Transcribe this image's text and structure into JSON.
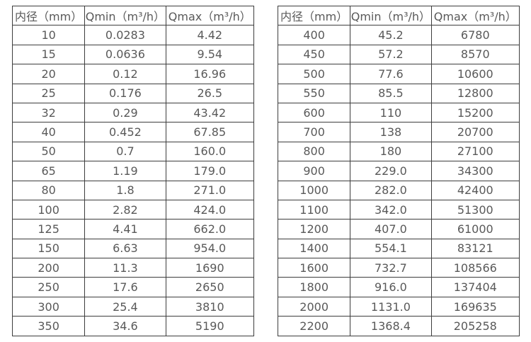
{
  "page": {
    "background_color": "#ffffff",
    "border_color": "#3d3d3d",
    "text_color": "#595959"
  },
  "tables": [
    {
      "name": "flow-table-small-diameters",
      "headers": [
        "内径（mm）",
        "Qmin（m³/h）",
        "Qmax（m³/h）"
      ],
      "rows": [
        [
          "10",
          "0.0283",
          "4.42"
        ],
        [
          "15",
          "0.0636",
          "9.54"
        ],
        [
          "20",
          "0.12",
          "16.96"
        ],
        [
          "25",
          "0.176",
          "26.5"
        ],
        [
          "32",
          "0.29",
          "43.42"
        ],
        [
          "40",
          "0.452",
          "67.85"
        ],
        [
          "50",
          "0.7",
          "160.0"
        ],
        [
          "65",
          "1.19",
          "179.0"
        ],
        [
          "80",
          "1.8",
          "271.0"
        ],
        [
          "100",
          "2.82",
          "424.0"
        ],
        [
          "125",
          "4.41",
          "662.0"
        ],
        [
          "150",
          "6.63",
          "954.0"
        ],
        [
          "200",
          "11.3",
          "1690"
        ],
        [
          "250",
          "17.6",
          "2650"
        ],
        [
          "300",
          "25.4",
          "3810"
        ],
        [
          "350",
          "34.6",
          "5190"
        ]
      ]
    },
    {
      "name": "flow-table-large-diameters",
      "headers": [
        "内径（mm）",
        "Qmin（m³/h）",
        "Qmax（m³/h）"
      ],
      "rows": [
        [
          "400",
          "45.2",
          "6780"
        ],
        [
          "450",
          "57.2",
          "8570"
        ],
        [
          "500",
          "77.6",
          "10600"
        ],
        [
          "550",
          "85.5",
          "12800"
        ],
        [
          "600",
          "110",
          "15200"
        ],
        [
          "700",
          "138",
          "20700"
        ],
        [
          "800",
          "180",
          "27100"
        ],
        [
          "900",
          "229.0",
          "34300"
        ],
        [
          "1000",
          "282.0",
          "42400"
        ],
        [
          "1100",
          "342.0",
          "51300"
        ],
        [
          "1200",
          "407.0",
          "61000"
        ],
        [
          "1400",
          "554.1",
          "83121"
        ],
        [
          "1600",
          "732.7",
          "108566"
        ],
        [
          "1800",
          "916.0",
          "137404"
        ],
        [
          "2000",
          "1131.0",
          "169635"
        ],
        [
          "2200",
          "1368.4",
          "205258"
        ]
      ]
    }
  ]
}
